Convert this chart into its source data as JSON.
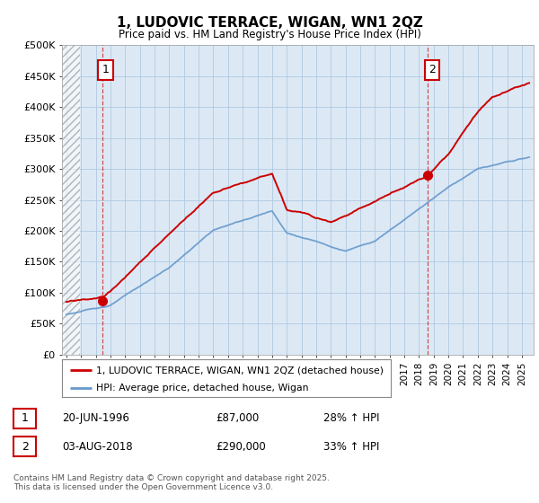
{
  "title": "1, LUDOVIC TERRACE, WIGAN, WN1 2QZ",
  "subtitle": "Price paid vs. HM Land Registry's House Price Index (HPI)",
  "ylim": [
    0,
    500000
  ],
  "yticks": [
    0,
    50000,
    100000,
    150000,
    200000,
    250000,
    300000,
    350000,
    400000,
    450000,
    500000
  ],
  "ytick_labels": [
    "£0",
    "£50K",
    "£100K",
    "£150K",
    "£200K",
    "£250K",
    "£300K",
    "£350K",
    "£400K",
    "£450K",
    "£500K"
  ],
  "xlim_start": 1993.7,
  "xlim_end": 2025.8,
  "hpi_color": "#6699cc",
  "price_color": "#cc0000",
  "plot_bg": "#dce9f5",
  "sale1_x": 1996.47,
  "sale1_y": 87000,
  "sale2_x": 2018.58,
  "sale2_y": 290000,
  "legend_label1": "1, LUDOVIC TERRACE, WIGAN, WN1 2QZ (detached house)",
  "legend_label2": "HPI: Average price, detached house, Wigan",
  "table_row1": [
    "1",
    "20-JUN-1996",
    "£87,000",
    "28% ↑ HPI"
  ],
  "table_row2": [
    "2",
    "03-AUG-2018",
    "£290,000",
    "33% ↑ HPI"
  ],
  "footnote": "Contains HM Land Registry data © Crown copyright and database right 2025.\nThis data is licensed under the Open Government Licence v3.0.",
  "bg_color": "#ffffff",
  "grid_color": "#b0c8e0",
  "hatch_end": 1994.95
}
